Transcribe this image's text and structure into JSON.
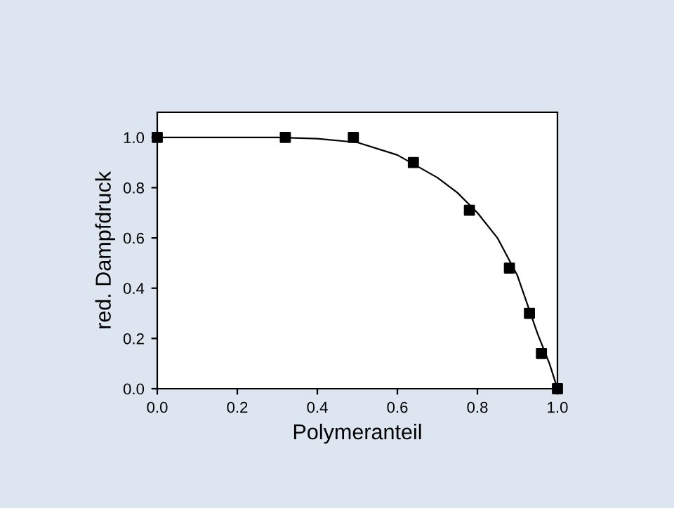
{
  "chart_data": {
    "type": "scatter",
    "xlabel": "Polymeranteil",
    "ylabel": "red. Dampfdruck",
    "xlim": [
      0,
      1.0
    ],
    "ylim": [
      0,
      1.1
    ],
    "xticks": [
      {
        "value": 0,
        "label": "0.0"
      },
      {
        "value": 0.2,
        "label": "0.2"
      },
      {
        "value": 0.4,
        "label": "0.4"
      },
      {
        "value": 0.6,
        "label": "0.6"
      },
      {
        "value": 0.8,
        "label": "0.8"
      },
      {
        "value": 1.0,
        "label": "1.0"
      }
    ],
    "yticks": [
      {
        "value": 0,
        "label": "0.0"
      },
      {
        "value": 0.2,
        "label": "0.2"
      },
      {
        "value": 0.4,
        "label": "0.4"
      },
      {
        "value": 0.6,
        "label": "0.6"
      },
      {
        "value": 0.8,
        "label": "0.8"
      },
      {
        "value": 1.0,
        "label": "1.0"
      }
    ],
    "grid": false,
    "series": [
      {
        "marker": "square",
        "color": "#000000",
        "x": [
          0,
          0.32,
          0.49,
          0.64,
          0.78,
          0.88,
          0.93,
          0.96,
          1.0
        ],
        "values": [
          1.0,
          1.0,
          1.0,
          0.9,
          0.71,
          0.48,
          0.3,
          0.14,
          0.0
        ]
      },
      {
        "type": "line",
        "color": "#000000",
        "line_style": "solid",
        "x": [
          0,
          0.2,
          0.3,
          0.4,
          0.5,
          0.6,
          0.7,
          0.75,
          0.8,
          0.85,
          0.9,
          0.95,
          0.98,
          1.0
        ],
        "values": [
          1.0,
          1.0,
          1.0,
          0.995,
          0.98,
          0.93,
          0.84,
          0.78,
          0.7,
          0.6,
          0.45,
          0.22,
          0.1,
          0.0
        ]
      }
    ]
  }
}
